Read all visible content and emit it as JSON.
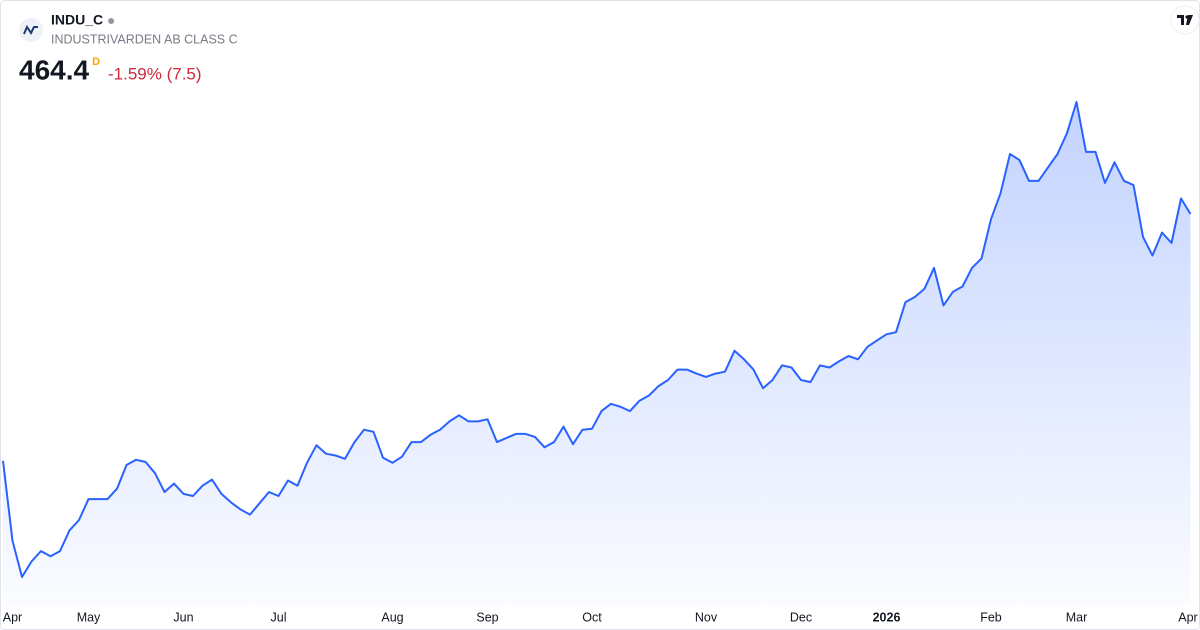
{
  "chart_data": {
    "type": "line",
    "title": "INDU_C",
    "subtitle": "INDUSTRIVARDEN AB CLASS C",
    "last_value": 464.4,
    "interval": "D",
    "change_label": "-1.59% (7.5)",
    "color": "#2962ff",
    "categories": [
      null,
      "Apr",
      null,
      null,
      null,
      null,
      null,
      null,
      null,
      "May",
      null,
      null,
      null,
      null,
      null,
      null,
      null,
      null,
      null,
      "Jun",
      null,
      null,
      null,
      null,
      null,
      null,
      null,
      null,
      null,
      "Jul",
      null,
      null,
      null,
      null,
      null,
      null,
      null,
      null,
      null,
      null,
      null,
      "Aug",
      null,
      null,
      null,
      null,
      null,
      null,
      null,
      null,
      null,
      "Sep",
      null,
      null,
      null,
      null,
      null,
      null,
      null,
      null,
      null,
      null,
      "Oct",
      null,
      null,
      null,
      null,
      null,
      null,
      null,
      null,
      null,
      null,
      null,
      "Nov",
      null,
      null,
      null,
      null,
      null,
      null,
      null,
      null,
      null,
      "Dec",
      null,
      null,
      null,
      null,
      null,
      null,
      null,
      null,
      "2026",
      null,
      null,
      null,
      null,
      null,
      null,
      null,
      null,
      null,
      null,
      "Feb",
      null,
      null,
      null,
      null,
      null,
      null,
      null,
      null,
      "Mar",
      null,
      null,
      null,
      null,
      null,
      null,
      null,
      null,
      null,
      null,
      null,
      "Apr"
    ],
    "values": [
      359.6,
      325.6,
      310.2,
      316.8,
      321.2,
      319.0,
      321.2,
      330.0,
      334.4,
      343.3,
      343.3,
      343.3,
      347.7,
      357.8,
      360.0,
      359.1,
      354.3,
      346.3,
      349.9,
      345.5,
      344.6,
      349.0,
      351.6,
      345.5,
      341.9,
      338.9,
      336.7,
      341.5,
      346.3,
      344.6,
      351.2,
      349.0,
      358.7,
      366.2,
      362.6,
      361.8,
      360.4,
      367.5,
      372.8,
      371.9,
      360.9,
      358.7,
      361.3,
      367.5,
      367.5,
      370.6,
      372.8,
      376.3,
      378.9,
      376.3,
      376.3,
      377.2,
      367.5,
      369.3,
      371.0,
      371.0,
      369.7,
      365.3,
      367.5,
      374.1,
      366.6,
      372.8,
      373.2,
      380.7,
      383.8,
      382.5,
      380.7,
      385.1,
      387.3,
      391.3,
      393.9,
      398.3,
      398.3,
      396.6,
      395.2,
      396.6,
      397.4,
      406.3,
      402.7,
      398.3,
      390.4,
      393.9,
      400.1,
      399.2,
      393.9,
      393.0,
      400.1,
      399.2,
      401.8,
      404.1,
      402.7,
      408.0,
      410.7,
      413.3,
      414.2,
      427.0,
      429.2,
      432.7,
      441.5,
      425.6,
      431.4,
      433.6,
      441.5,
      445.5,
      462.2,
      473.2,
      489.9,
      487.3,
      478.5,
      478.5,
      484.2,
      489.9,
      498.8,
      512.0,
      490.8,
      490.8,
      477.6,
      486.4,
      478.5,
      476.7,
      454.7,
      446.8,
      456.5,
      452.1,
      471.0,
      464.4
    ]
  }
}
